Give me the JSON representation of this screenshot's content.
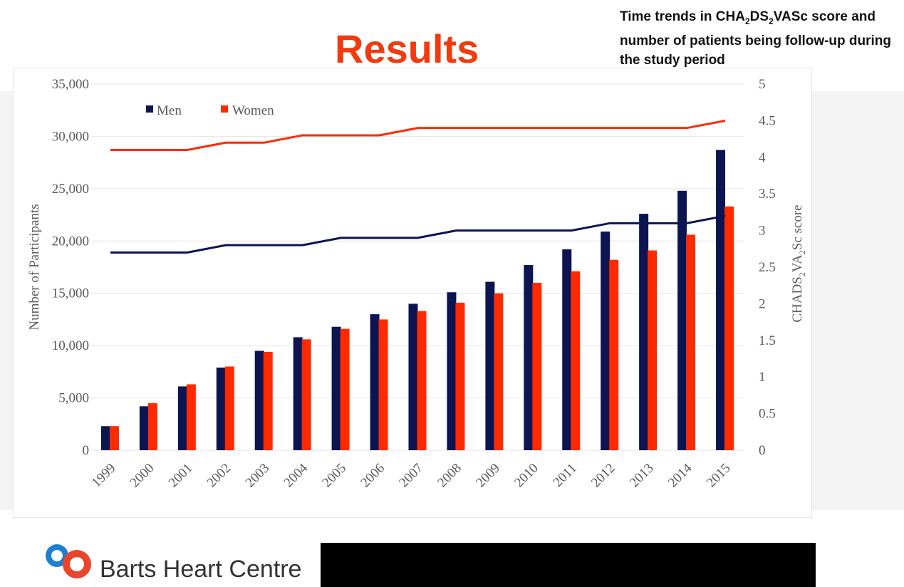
{
  "slide": {
    "title": "Results",
    "subtitle_parts": [
      "Time trends in CHA",
      "2",
      "DS",
      "2",
      "VASc score and number of patients being follow-up during the study period"
    ],
    "footer_brand": "Barts Heart Centre"
  },
  "colors": {
    "men": "#0d1452",
    "women": "#ff2a00",
    "title": "#f23a0e"
  },
  "chart_data": {
    "type": "bar",
    "title": "",
    "categories": [
      "1999",
      "2000",
      "2001",
      "2002",
      "2003",
      "2004",
      "2005",
      "2006",
      "2007",
      "2008",
      "2009",
      "2010",
      "2011",
      "2012",
      "2013",
      "2014",
      "2015"
    ],
    "series": [
      {
        "name": "Men",
        "type": "bar",
        "axis": "left",
        "values": [
          2300,
          4200,
          6100,
          7900,
          9500,
          10800,
          11800,
          13000,
          14000,
          15100,
          16100,
          17700,
          19200,
          20900,
          22600,
          24800,
          28700
        ]
      },
      {
        "name": "Women",
        "type": "bar",
        "axis": "left",
        "values": [
          2300,
          4500,
          6300,
          8000,
          9400,
          10600,
          11600,
          12500,
          13300,
          14100,
          15000,
          16000,
          17100,
          18200,
          19100,
          20600,
          23300
        ]
      },
      {
        "name": "Men CHA2DS2-VASc",
        "type": "line",
        "axis": "right",
        "values": [
          2.7,
          2.7,
          2.7,
          2.8,
          2.8,
          2.8,
          2.9,
          2.9,
          2.9,
          3.0,
          3.0,
          3.0,
          3.0,
          3.1,
          3.1,
          3.1,
          3.2
        ]
      },
      {
        "name": "Women CHA2DS2-VASc",
        "type": "line",
        "axis": "right",
        "values": [
          4.1,
          4.1,
          4.1,
          4.2,
          4.2,
          4.3,
          4.3,
          4.3,
          4.4,
          4.4,
          4.4,
          4.4,
          4.4,
          4.4,
          4.4,
          4.4,
          4.5
        ]
      }
    ],
    "ylabel": "Number of Participants",
    "ylabel2_parts": [
      "CHADS",
      "2",
      "VA",
      "2",
      "Sc score"
    ],
    "ylim": [
      0,
      35000
    ],
    "ylim2": [
      0,
      5
    ],
    "yticks": [
      "0",
      "5,000",
      "10,000",
      "15,000",
      "20,000",
      "25,000",
      "30,000",
      "35,000"
    ],
    "yticks_values": [
      0,
      5000,
      10000,
      15000,
      20000,
      25000,
      30000,
      35000
    ],
    "y2ticks": [
      "0",
      "0.5",
      "1",
      "1.5",
      "2",
      "2.5",
      "3",
      "3.5",
      "4",
      "4.5",
      "5"
    ],
    "y2ticks_values": [
      0,
      0.5,
      1,
      1.5,
      2,
      2.5,
      3,
      3.5,
      4,
      4.5,
      5
    ],
    "legend": [
      "Men",
      "Women"
    ],
    "legend_position": "top-left",
    "grid": true
  }
}
